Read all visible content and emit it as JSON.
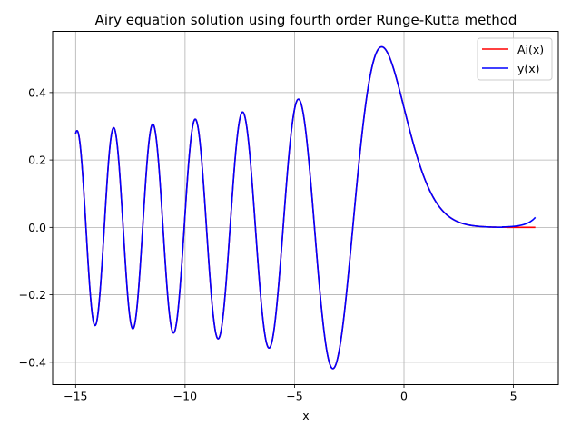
{
  "chart_data": {
    "type": "line",
    "title": "Airy equation solution using fourth order Runge-Kutta method",
    "xlabel": "x",
    "ylabel": "",
    "xlim": [
      -16.05,
      7.05
    ],
    "ylim": [
      -0.4665,
      0.5815
    ],
    "x_ticks": [
      -15,
      -10,
      -5,
      0,
      5
    ],
    "x_tick_labels": [
      "−15",
      "−10",
      "−5",
      "0",
      "5"
    ],
    "y_ticks": [
      -0.4,
      -0.2,
      0.0,
      0.2,
      0.4
    ],
    "y_tick_labels": [
      "−0.4",
      "−0.2",
      "0.0",
      "0.2",
      "0.4"
    ],
    "grid": true,
    "legend_position": "top-right",
    "x_range": [
      -15,
      6
    ],
    "series": [
      {
        "name": "Ai(x)",
        "color": "#ff0000",
        "function": "Airy Ai"
      },
      {
        "name": "y(x)",
        "color": "#0000ff",
        "function": "RK4 numerical solution of y'' = x y"
      }
    ]
  }
}
